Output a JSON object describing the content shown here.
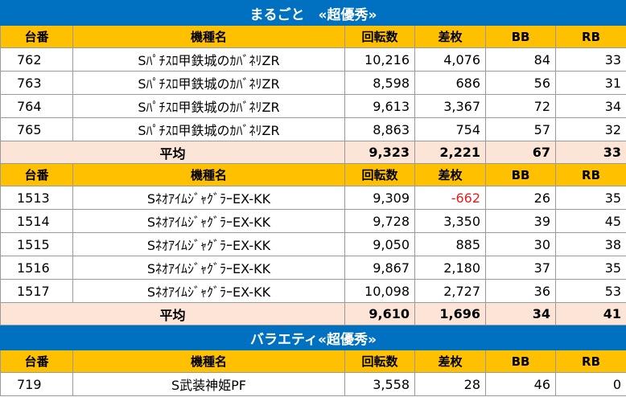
{
  "sections": [
    {
      "title": "まるごと　«超優秀»",
      "groups": [
        {
          "headers": [
            "台番",
            "機種名",
            "回転数",
            "差枚",
            "BB",
            "RB"
          ],
          "rows": [
            [
              "762",
              "Sﾊﾟﾁｽﾛ甲鉄城のｶﾊﾞﾈﾘZR",
              "10,216",
              "4,076",
              "84",
              "33"
            ],
            [
              "763",
              "Sﾊﾟﾁｽﾛ甲鉄城のｶﾊﾞﾈﾘZR",
              "8,598",
              "686",
              "56",
              "31"
            ],
            [
              "764",
              "Sﾊﾟﾁｽﾛ甲鉄城のｶﾊﾞﾈﾘZR",
              "9,613",
              "3,367",
              "72",
              "34"
            ],
            [
              "765",
              "Sﾊﾟﾁｽﾛ甲鉄城のｶﾊﾞﾈﾘZR",
              "8,863",
              "754",
              "57",
              "32"
            ]
          ],
          "average": [
            "平均",
            "9,323",
            "2,221",
            "67",
            "33"
          ]
        },
        {
          "headers": [
            "台番",
            "機種名",
            "回転数",
            "差枚",
            "BB",
            "RB"
          ],
          "rows": [
            [
              "1513",
              "SﾈｵｱｲﾑｼﾞｬｸﾞﾗｰEX-KK",
              "9,309",
              "-662",
              "26",
              "35"
            ],
            [
              "1514",
              "SﾈｵｱｲﾑｼﾞｬｸﾞﾗｰEX-KK",
              "9,728",
              "3,350",
              "39",
              "45"
            ],
            [
              "1515",
              "SﾈｵｱｲﾑｼﾞｬｸﾞﾗｰEX-KK",
              "9,050",
              "885",
              "30",
              "38"
            ],
            [
              "1516",
              "SﾈｵｱｲﾑｼﾞｬｸﾞﾗｰEX-KK",
              "9,867",
              "2,180",
              "37",
              "35"
            ],
            [
              "1517",
              "SﾈｵｱｲﾑｼﾞｬｸﾞﾗｰEX-KK",
              "10,098",
              "2,727",
              "36",
              "53"
            ]
          ],
          "average": [
            "平均",
            "9,610",
            "1,696",
            "34",
            "41"
          ]
        }
      ]
    },
    {
      "title": "バラエティ«超優秀»",
      "groups": [
        {
          "headers": [
            "台番",
            "機種名",
            "回転数",
            "差枚",
            "BB",
            "RB"
          ],
          "rows": [
            [
              "719",
              "S武装神姫PF",
              "3,558",
              "28",
              "46",
              "0"
            ]
          ]
        }
      ]
    }
  ],
  "colors": {
    "title_bg": "#0070c0",
    "header_bg": "#ffc000",
    "average_bg": "#fce4d6",
    "negative_text": "#e02020"
  }
}
